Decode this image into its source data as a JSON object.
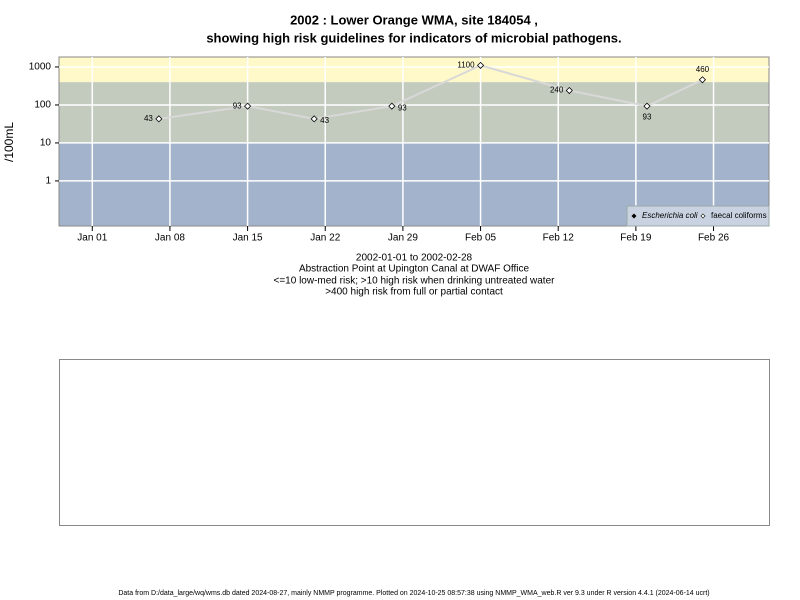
{
  "chart_data": {
    "type": "line",
    "title": [
      "2002 : Lower Orange WMA, site 184054 ,",
      "showing high risk guidelines for indicators of microbial pathogens."
    ],
    "notes": [
      "2002-01-01 to 2002-02-28",
      "Abstraction Point at Upington Canal at DWAF Office",
      "<=10 low-med risk; >10 high risk when drinking untreated water",
      ">400 high risk from full or partial contact"
    ],
    "y_label": "/100mL",
    "x": [
      "2002-01-07",
      "2002-01-15",
      "2002-01-21",
      "2002-01-28",
      "2002-02-05",
      "2002-02-13",
      "2002-02-20",
      "2002-02-25"
    ],
    "series": [
      {
        "name": "Escherichia coli",
        "color": "#000000",
        "values": [
          null,
          null,
          null,
          null,
          null,
          null,
          null,
          null
        ]
      },
      {
        "name": "faecal coliforms",
        "color": "#d8d8d8",
        "values": [
          43,
          93,
          43,
          93,
          1100,
          240,
          93,
          460
        ]
      }
    ],
    "xlim": [
      "2001-12-29",
      "2002-03-03"
    ],
    "xticks": [
      {
        "value": "2002-01-01",
        "label": "Jan 01"
      },
      {
        "value": "2002-01-08",
        "label": "Jan 08"
      },
      {
        "value": "2002-01-15",
        "label": "Jan 15"
      },
      {
        "value": "2002-01-22",
        "label": "Jan 22"
      },
      {
        "value": "2002-01-29",
        "label": "Jan 29"
      },
      {
        "value": "2002-02-05",
        "label": "Feb 05"
      },
      {
        "value": "2002-02-12",
        "label": "Feb 12"
      },
      {
        "value": "2002-02-19",
        "label": "Feb 19"
      },
      {
        "value": "2002-02-26",
        "label": "Feb 26"
      }
    ],
    "ylim": [
      0.065,
      1830
    ],
    "yticks": [
      1,
      10,
      100,
      1000
    ],
    "log_scale": true,
    "grid": true,
    "legend": "bottom-right",
    "band_limits": [
      10,
      400
    ],
    "band_colors": [
      "#a3b3cb",
      "#c3cbbf",
      "#fff8c8"
    ]
  },
  "footer": "Data from D:/data_large/wq/wms.db dated 2024-08-27, mainly NMMP programme. Plotted on 2024-10-25 08:57:38 using NMMP_WMA_web.R ver 9.3 under R version 4.4.1 (2024-06-14 ucrt)"
}
